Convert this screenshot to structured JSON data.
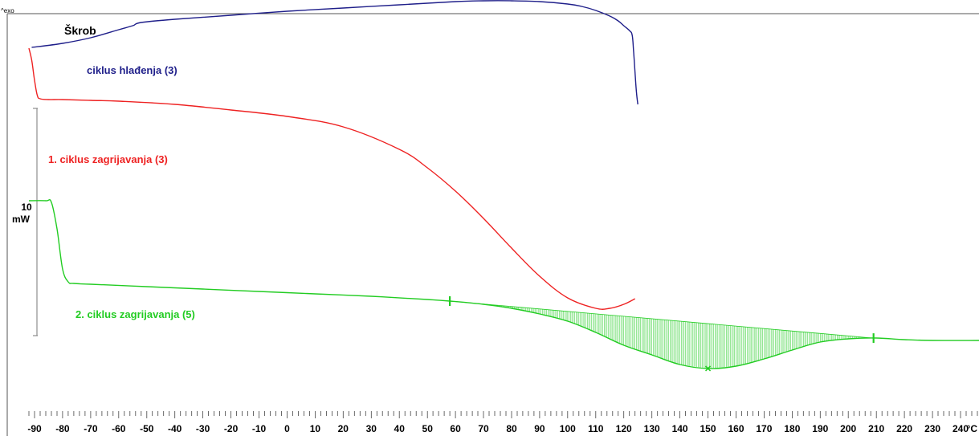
{
  "chart_data": {
    "type": "line",
    "title": "Škrob",
    "corner_label": "^exo",
    "x_unit": "°C",
    "xlim": [
      -92,
      247
    ],
    "x_ticks": [
      -90,
      -80,
      -70,
      -60,
      -50,
      -40,
      -30,
      -20,
      -10,
      0,
      10,
      20,
      30,
      40,
      50,
      60,
      70,
      80,
      90,
      100,
      110,
      120,
      130,
      140,
      150,
      160,
      170,
      180,
      190,
      200,
      210,
      220,
      230,
      240
    ],
    "scale_bar": {
      "value_label": "10",
      "unit_label": "mW"
    },
    "series": [
      {
        "name": "ciklus hlađenja (3)",
        "color": "#1f1f8a",
        "x": [
          -91,
          -80,
          -70,
          -60,
          -55,
          -52,
          -40,
          -20,
          0,
          20,
          40,
          60,
          70,
          80,
          90,
          100,
          105,
          110,
          115,
          118,
          120,
          122,
          123,
          123.5,
          124,
          124.5,
          125
        ],
        "y": [
          -3.9,
          -3.4,
          -2.7,
          -1.7,
          -1.2,
          -0.8,
          -0.4,
          0.1,
          0.6,
          1.0,
          1.4,
          1.8,
          1.9,
          1.9,
          1.8,
          1.5,
          1.2,
          0.7,
          0,
          -0.6,
          -1.2,
          -1.8,
          -2.4,
          -4.5,
          -7,
          -9.5,
          -11
        ]
      },
      {
        "name": "1. ciklus zagrijavanja (3)",
        "color": "#ee2222",
        "x": [
          -92,
          -91,
          -90,
          -89,
          -88,
          -85,
          -80,
          -70,
          -60,
          -40,
          -20,
          0,
          20,
          40,
          50,
          60,
          70,
          80,
          90,
          100,
          110,
          115,
          120,
          124
        ],
        "y": [
          -4,
          -5.5,
          -8,
          -9.9,
          -10.3,
          -10.4,
          -10.4,
          -10.5,
          -10.6,
          -11.0,
          -11.7,
          -12.5,
          -13.8,
          -16.6,
          -18.9,
          -21.8,
          -25.2,
          -28.9,
          -32.4,
          -35.1,
          -36.4,
          -36.4,
          -35.9,
          -35.2
        ]
      },
      {
        "name": "2. ciklus zagrijavanja (5)",
        "color": "#22cc22",
        "x": [
          -92,
          -86,
          -84,
          -82,
          -80,
          -78,
          -76,
          -70,
          -50,
          -30,
          -10,
          10,
          30,
          50,
          58,
          70,
          80,
          90,
          100,
          110,
          120,
          130,
          140,
          150,
          160,
          170,
          180,
          190,
          200,
          210,
          220,
          230,
          247
        ],
        "y": [
          -23,
          -23,
          -23.2,
          -26.5,
          -31.5,
          -33.1,
          -33.3,
          -33.4,
          -33.7,
          -34.0,
          -34.3,
          -34.6,
          -34.9,
          -35.3,
          -35.5,
          -35.9,
          -36.4,
          -37.1,
          -38.0,
          -39.4,
          -41.0,
          -42.2,
          -43.4,
          -43.9,
          -43.6,
          -42.7,
          -41.6,
          -40.6,
          -40.2,
          -40.1,
          -40.3,
          -40.4,
          -40.4
        ]
      }
    ],
    "shaded_region": {
      "series": "2. ciklus zagrijavanja (5)",
      "x_start": 58,
      "x_end": 209,
      "peak_x": 150
    }
  }
}
